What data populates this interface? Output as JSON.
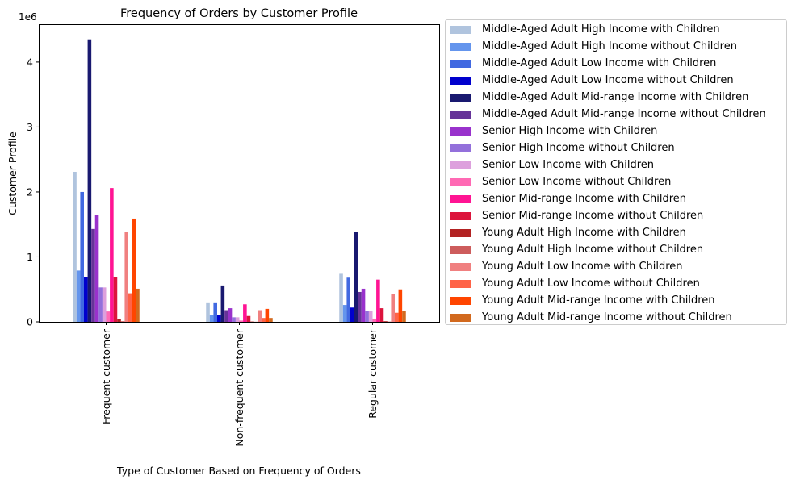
{
  "chart_data": {
    "type": "bar",
    "title": "Frequency of Orders by Customer Profile",
    "xlabel": "Type of Customer Based on Frequency of Orders",
    "ylabel": "Customer Profile",
    "offset_label": "1e6",
    "ylim": [
      0,
      4.57
    ],
    "yticks": [
      0,
      1,
      2,
      3,
      4
    ],
    "ytick_labels": [
      "0",
      "1",
      "2",
      "3",
      "4"
    ],
    "y_unit_multiplier": 1000000,
    "legend_position": "outside-right",
    "categories": [
      "Frequent customer",
      "Non-frequent customer",
      "Regular customer"
    ],
    "series": [
      {
        "name": "Middle-Aged Adult High Income with Children",
        "color": "#b0c4de",
        "values": [
          2.31,
          0.3,
          0.74
        ]
      },
      {
        "name": "Middle-Aged Adult High Income without Children",
        "color": "#6495ed",
        "values": [
          0.79,
          0.1,
          0.26
        ]
      },
      {
        "name": "Middle-Aged Adult Low Income with Children",
        "color": "#4169e1",
        "values": [
          2.0,
          0.3,
          0.68
        ]
      },
      {
        "name": "Middle-Aged Adult Low Income without Children",
        "color": "#0000cd",
        "values": [
          0.69,
          0.1,
          0.22
        ]
      },
      {
        "name": "Middle-Aged Adult Mid-range Income with Children",
        "color": "#191970",
        "values": [
          4.35,
          0.56,
          1.39
        ]
      },
      {
        "name": "Middle-Aged Adult Mid-range Income without Children",
        "color": "#663399",
        "values": [
          1.43,
          0.18,
          0.46
        ]
      },
      {
        "name": "Senior High Income with Children",
        "color": "#9932cc",
        "values": [
          1.64,
          0.21,
          0.51
        ]
      },
      {
        "name": "Senior High Income without Children",
        "color": "#9370db",
        "values": [
          0.53,
          0.07,
          0.17
        ]
      },
      {
        "name": "Senior Low Income with Children",
        "color": "#dda0dd",
        "values": [
          0.53,
          0.07,
          0.17
        ]
      },
      {
        "name": "Senior Low Income without Children",
        "color": "#ff69b4",
        "values": [
          0.16,
          0.02,
          0.05
        ]
      },
      {
        "name": "Senior Mid-range Income with Children",
        "color": "#ff1493",
        "values": [
          2.06,
          0.27,
          0.65
        ]
      },
      {
        "name": "Senior Mid-range Income without Children",
        "color": "#dc143c",
        "values": [
          0.69,
          0.09,
          0.21
        ]
      },
      {
        "name": "Young Adult High Income with Children",
        "color": "#b22222",
        "values": [
          0.04,
          0.005,
          0.01
        ]
      },
      {
        "name": "Young Adult High Income without Children",
        "color": "#cd5c5c",
        "values": [
          0.01,
          0.002,
          0.004
        ]
      },
      {
        "name": "Young Adult Low Income with Children",
        "color": "#f08080",
        "values": [
          1.38,
          0.18,
          0.43
        ]
      },
      {
        "name": "Young Adult Low Income without Children",
        "color": "#ff6347",
        "values": [
          0.44,
          0.06,
          0.14
        ]
      },
      {
        "name": "Young Adult Mid-range Income with Children",
        "color": "#ff4500",
        "values": [
          1.59,
          0.2,
          0.5
        ]
      },
      {
        "name": "Young Adult Mid-range Income without Children",
        "color": "#d2691e",
        "values": [
          0.51,
          0.06,
          0.17
        ]
      }
    ]
  }
}
